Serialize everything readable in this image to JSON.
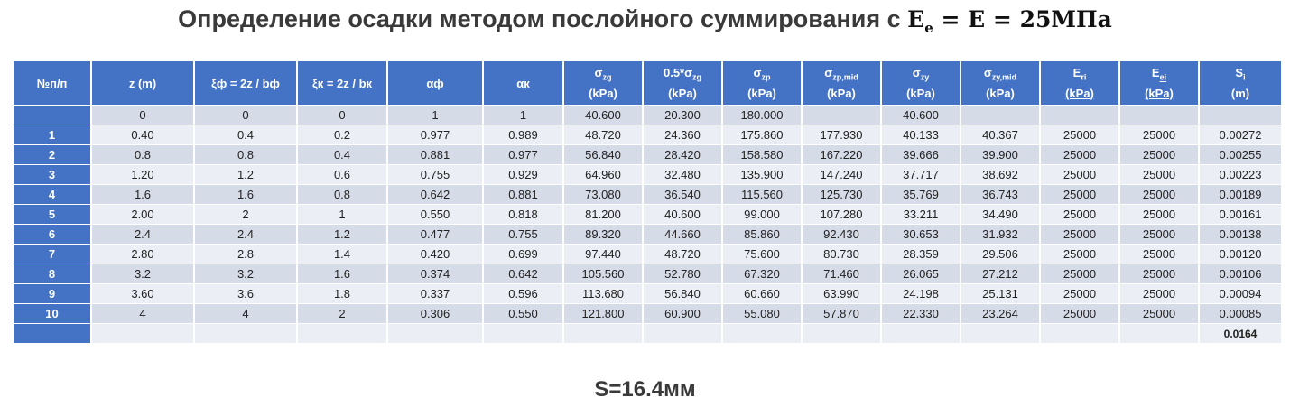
{
  "title": {
    "text": "Определение осадки методом послойного суммирования с ",
    "e_base": "E",
    "e_sub": "e",
    "eq1": " = ",
    "e2": "E",
    "eq2": " = ",
    "value": "25МПа"
  },
  "headers": {
    "num": "№п/п",
    "z": "z (m)",
    "xi_f": "ξф = 2z / bф",
    "xi_k": "ξк = 2z / bк",
    "alpha_f": "αф",
    "alpha_k": "αк",
    "sigma_zg": {
      "base": "σ",
      "sub": "zg",
      "unit": "(kPa)"
    },
    "half_sigma_zg": {
      "pre": "0.5*σ",
      "sub": "zg",
      "unit": "(kPa)"
    },
    "sigma_zp": {
      "base": "σ",
      "sub": "zp",
      "unit": "(kPa)"
    },
    "sigma_zp_mid": {
      "base": "σ",
      "sub": "zp,mid",
      "unit": "(kPa)"
    },
    "sigma_zy": {
      "base": "σ",
      "sub": "zy",
      "unit": "(kPa)"
    },
    "sigma_zy_mid": {
      "base": "σ",
      "sub": "zy,mid",
      "unit": "(kPa)"
    },
    "e_ri": {
      "base": "E",
      "sub": "ri",
      "unit": "(kPa)"
    },
    "e_ei": {
      "base": "E",
      "sub": "ei",
      "unit": "(kPa)"
    },
    "s_i": {
      "base": "S",
      "sub": "i",
      "unit": "(m)"
    }
  },
  "rows": [
    [
      "",
      "0",
      "0",
      "0",
      "1",
      "1",
      "40.600",
      "20.300",
      "180.000",
      "",
      "40.600",
      "",
      "",
      "",
      ""
    ],
    [
      "1",
      "0.40",
      "0.4",
      "0.2",
      "0.977",
      "0.989",
      "48.720",
      "24.360",
      "175.860",
      "177.930",
      "40.133",
      "40.367",
      "25000",
      "25000",
      "0.00272"
    ],
    [
      "2",
      "0.8",
      "0.8",
      "0.4",
      "0.881",
      "0.977",
      "56.840",
      "28.420",
      "158.580",
      "167.220",
      "39.666",
      "39.900",
      "25000",
      "25000",
      "0.00255"
    ],
    [
      "3",
      "1.20",
      "1.2",
      "0.6",
      "0.755",
      "0.929",
      "64.960",
      "32.480",
      "135.900",
      "147.240",
      "37.717",
      "38.692",
      "25000",
      "25000",
      "0.00223"
    ],
    [
      "4",
      "1.6",
      "1.6",
      "0.8",
      "0.642",
      "0.881",
      "73.080",
      "36.540",
      "115.560",
      "125.730",
      "35.769",
      "36.743",
      "25000",
      "25000",
      "0.00189"
    ],
    [
      "5",
      "2.00",
      "2",
      "1",
      "0.550",
      "0.818",
      "81.200",
      "40.600",
      "99.000",
      "107.280",
      "33.211",
      "34.490",
      "25000",
      "25000",
      "0.00161"
    ],
    [
      "6",
      "2.4",
      "2.4",
      "1.2",
      "0.477",
      "0.755",
      "89.320",
      "44.660",
      "85.860",
      "92.430",
      "30.653",
      "31.932",
      "25000",
      "25000",
      "0.00138"
    ],
    [
      "7",
      "2.80",
      "2.8",
      "1.4",
      "0.420",
      "0.699",
      "97.440",
      "48.720",
      "75.600",
      "80.730",
      "28.359",
      "29.506",
      "25000",
      "25000",
      "0.00120"
    ],
    [
      "8",
      "3.2",
      "3.2",
      "1.6",
      "0.374",
      "0.642",
      "105.560",
      "52.780",
      "67.320",
      "71.460",
      "26.065",
      "27.212",
      "25000",
      "25000",
      "0.00106"
    ],
    [
      "9",
      "3.60",
      "3.6",
      "1.8",
      "0.337",
      "0.596",
      "113.680",
      "56.840",
      "60.660",
      "63.990",
      "24.198",
      "25.131",
      "25000",
      "25000",
      "0.00094"
    ],
    [
      "10",
      "4",
      "4",
      "2",
      "0.306",
      "0.550",
      "121.800",
      "60.900",
      "55.080",
      "57.870",
      "22.330",
      "23.264",
      "25000",
      "25000",
      "0.00085"
    ]
  ],
  "total_si": "0.0164",
  "result": "S=16.4мм",
  "colors": {
    "header": "#4472c4",
    "row_dark": "#d6dbe8",
    "row_light": "#ebeef4"
  }
}
